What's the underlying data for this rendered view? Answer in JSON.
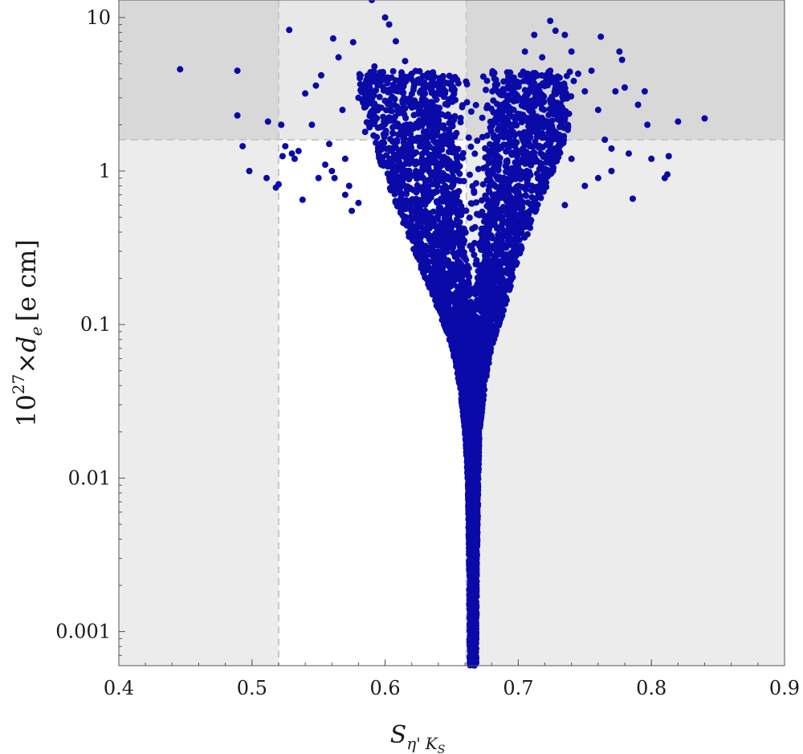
{
  "chart_data": {
    "type": "scatter",
    "title": "",
    "xlabel_main": "S",
    "xlabel_sub1": "η'",
    "xlabel_sub2": "K",
    "xlabel_sub3": "S",
    "ylabel_prefix": "10",
    "ylabel_exp": "27",
    "ylabel_times": "×",
    "ylabel_var": "d",
    "ylabel_var_sub": "e",
    "ylabel_unit": "[e cm]",
    "xlim": [
      0.4,
      0.9
    ],
    "ylim": [
      0.0006,
      13
    ],
    "yscale": "log",
    "grid": false,
    "x_ticks": [
      0.4,
      0.5,
      0.6,
      0.7,
      0.8,
      0.9
    ],
    "x_tick_labels": [
      "0.4",
      "0.5",
      "0.6",
      "0.7",
      "0.8",
      "0.9"
    ],
    "y_ticks": [
      0.001,
      0.01,
      0.1,
      1,
      10
    ],
    "y_tick_labels": [
      "0.001",
      "0.01",
      "0.1",
      "1",
      "10"
    ],
    "marker_color": "#0a0aa8",
    "shaded_regions": [
      {
        "x": [
          0.4,
          0.52
        ],
        "y": [
          0.0006,
          13
        ],
        "color": "#ececec"
      },
      {
        "x": [
          0.661,
          0.9
        ],
        "y": [
          0.0006,
          13
        ],
        "color": "#ececec"
      },
      {
        "x": [
          0.4,
          0.9
        ],
        "y": [
          1.6,
          13
        ],
        "color": "#e8e8e8"
      },
      {
        "x": [
          0.4,
          0.52
        ],
        "y": [
          1.6,
          13
        ],
        "color": "#d8d8d8"
      },
      {
        "x": [
          0.661,
          0.9
        ],
        "y": [
          1.6,
          13
        ],
        "color": "#d8d8d8"
      }
    ],
    "bounds": {
      "x_low": 0.52,
      "x_high": 0.661,
      "y_high": 1.6
    },
    "series": [
      {
        "points": [
          [
            0.446,
            4.6
          ],
          [
            0.489,
            4.5
          ],
          [
            0.489,
            2.3
          ],
          [
            0.493,
            1.45
          ],
          [
            0.498,
            1.0
          ],
          [
            0.512,
            2.1
          ],
          [
            0.511,
            0.9
          ],
          [
            0.518,
            0.78
          ],
          [
            0.52,
            0.82
          ],
          [
            0.522,
            2.0
          ],
          [
            0.523,
            1.25
          ],
          [
            0.525,
            1.45
          ],
          [
            0.528,
            8.3
          ],
          [
            0.53,
            1.3
          ],
          [
            0.532,
            1.2
          ],
          [
            0.535,
            1.35
          ],
          [
            0.538,
            0.65
          ],
          [
            0.54,
            3.2
          ],
          [
            0.545,
            2.0
          ],
          [
            0.548,
            3.6
          ],
          [
            0.552,
            4.2
          ],
          [
            0.555,
            1.1
          ],
          [
            0.558,
            1.5
          ],
          [
            0.561,
            7.3
          ],
          [
            0.562,
            0.9
          ],
          [
            0.565,
            5.5
          ],
          [
            0.568,
            2.5
          ],
          [
            0.57,
            1.2
          ],
          [
            0.573,
            0.8
          ],
          [
            0.576,
            6.9
          ],
          [
            0.58,
            3.0
          ],
          [
            0.585,
            1.8
          ],
          [
            0.59,
            13.0
          ],
          [
            0.592,
            4.8
          ],
          [
            0.595,
            2.6
          ],
          [
            0.6,
            10.0
          ],
          [
            0.603,
            9.0
          ],
          [
            0.608,
            7.0
          ],
          [
            0.61,
            3.3
          ],
          [
            0.615,
            5.2
          ],
          [
            0.62,
            4.3
          ],
          [
            0.705,
            6.0
          ],
          [
            0.712,
            7.7
          ],
          [
            0.718,
            5.5
          ],
          [
            0.724,
            9.5
          ],
          [
            0.728,
            8.2
          ],
          [
            0.735,
            7.7
          ],
          [
            0.74,
            6.0
          ],
          [
            0.745,
            4.3
          ],
          [
            0.75,
            3.3
          ],
          [
            0.755,
            4.5
          ],
          [
            0.76,
            2.5
          ],
          [
            0.762,
            7.5
          ],
          [
            0.765,
            1.6
          ],
          [
            0.77,
            1.4
          ],
          [
            0.773,
            3.3
          ],
          [
            0.776,
            6.0
          ],
          [
            0.778,
            5.3
          ],
          [
            0.78,
            3.5
          ],
          [
            0.783,
            1.3
          ],
          [
            0.786,
            0.66
          ],
          [
            0.79,
            2.7
          ],
          [
            0.795,
            3.3
          ],
          [
            0.797,
            2.0
          ],
          [
            0.8,
            1.2
          ],
          [
            0.812,
            0.95
          ],
          [
            0.81,
            0.9
          ],
          [
            0.813,
            1.25
          ],
          [
            0.82,
            2.1
          ],
          [
            0.84,
            2.2
          ],
          [
            0.77,
            1.0
          ],
          [
            0.76,
            0.9
          ],
          [
            0.75,
            0.8
          ],
          [
            0.74,
            1.2
          ],
          [
            0.735,
            0.6
          ],
          [
            0.55,
            0.9
          ],
          [
            0.56,
            1.0
          ],
          [
            0.57,
            0.7
          ],
          [
            0.575,
            0.55
          ],
          [
            0.58,
            0.62
          ]
        ],
        "envelope": [
          [
            0.0006,
            0.6635,
            0.6685
          ],
          [
            0.001,
            0.6635,
            0.6685
          ],
          [
            0.003,
            0.663,
            0.669
          ],
          [
            0.01,
            0.662,
            0.67
          ],
          [
            0.02,
            0.66,
            0.671
          ],
          [
            0.04,
            0.656,
            0.675
          ],
          [
            0.07,
            0.65,
            0.68
          ],
          [
            0.1,
            0.644,
            0.686
          ],
          [
            0.15,
            0.636,
            0.692
          ],
          [
            0.2,
            0.63,
            0.696
          ],
          [
            0.3,
            0.622,
            0.702
          ],
          [
            0.5,
            0.612,
            0.712
          ],
          [
            0.8,
            0.603,
            0.722
          ],
          [
            1.2,
            0.595,
            0.73
          ],
          [
            1.8,
            0.588,
            0.737
          ],
          [
            2.7,
            0.583,
            0.74
          ],
          [
            4.0,
            0.58,
            0.742
          ]
        ],
        "gap": [
          [
            0.12,
            0.6655,
            0.6665
          ],
          [
            0.2,
            0.663,
            0.669
          ],
          [
            0.4,
            0.659,
            0.672
          ],
          [
            0.8,
            0.657,
            0.676
          ],
          [
            1.5,
            0.655,
            0.678
          ],
          [
            3.0,
            0.653,
            0.68
          ]
        ]
      }
    ]
  }
}
